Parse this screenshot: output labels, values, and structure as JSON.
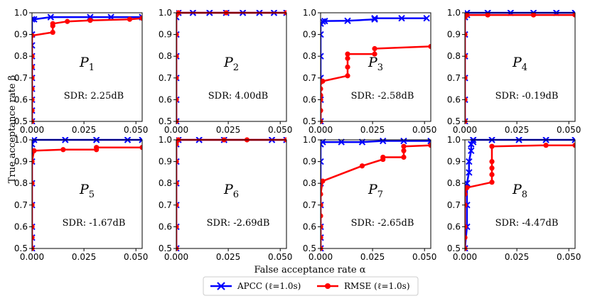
{
  "figure": {
    "xlabel": "False acceptance rate α",
    "ylabel": "True acceptance rate β"
  },
  "legend": [
    {
      "name": "APCC (ℓ=1.0s)",
      "color": "#0000ff",
      "marker": "x"
    },
    {
      "name": "RMSE (ℓ=1.0s)",
      "color": "#ff0000",
      "marker": "o"
    }
  ],
  "chart_data": [
    {
      "type": "line",
      "title": "P1",
      "annotation": "SDR: 2.25dB",
      "xlim": [
        0,
        0.053
      ],
      "ylim": [
        0.5,
        1.0
      ],
      "xticks": [
        "0.000",
        "0.025",
        "0.050"
      ],
      "yticks": [
        "0.5",
        "0.6",
        "0.7",
        "0.8",
        "0.9",
        "1.0"
      ],
      "series": [
        {
          "name": "APCC (ℓ=1.0s)",
          "x": [
            0,
            0,
            0,
            0,
            0,
            0,
            0,
            0,
            0,
            0,
            0.001,
            0.009,
            0.028,
            0.038,
            0.053
          ],
          "y": [
            0.5,
            0.55,
            0.6,
            0.65,
            0.7,
            0.75,
            0.8,
            0.85,
            0.9,
            0.97,
            0.97,
            0.98,
            0.98,
            0.98,
            0.98
          ]
        },
        {
          "name": "RMSE (ℓ=1.0s)",
          "x": [
            0,
            0,
            0,
            0,
            0,
            0,
            0,
            0,
            0.01,
            0.01,
            0.01,
            0.017,
            0.028,
            0.047,
            0.053
          ],
          "y": [
            0.5,
            0.55,
            0.6,
            0.65,
            0.7,
            0.75,
            0.8,
            0.895,
            0.91,
            0.94,
            0.95,
            0.96,
            0.965,
            0.97,
            0.975
          ]
        }
      ]
    },
    {
      "type": "line",
      "title": "P2",
      "annotation": "SDR: 4.00dB",
      "xlim": [
        0,
        0.053
      ],
      "ylim": [
        0.5,
        1.0
      ],
      "xticks": [
        "0.000",
        "0.025",
        "0.050"
      ],
      "yticks": [
        "0.5",
        "0.6",
        "0.7",
        "0.8",
        "0.9",
        "1.0"
      ],
      "series": [
        {
          "name": "APCC (ℓ=1.0s)",
          "x": [
            0,
            0,
            0,
            0,
            0,
            0,
            0.001,
            0.008,
            0.016,
            0.024,
            0.032,
            0.04,
            0.047,
            0.053
          ],
          "y": [
            0.5,
            0.6,
            0.7,
            0.8,
            0.9,
            0.98,
            1.0,
            1.0,
            1.0,
            1.0,
            1.0,
            1.0,
            1.0,
            1.0
          ]
        },
        {
          "name": "RMSE (ℓ=1.0s)",
          "x": [
            0,
            0,
            0,
            0,
            0,
            0,
            0.001,
            0.024,
            0.053
          ],
          "y": [
            0.5,
            0.6,
            0.7,
            0.8,
            0.9,
            0.99,
            1.0,
            1.0,
            1.0
          ]
        }
      ]
    },
    {
      "type": "line",
      "title": "P3",
      "annotation": "SDR: -2.58dB",
      "xlim": [
        0,
        0.053
      ],
      "ylim": [
        0.5,
        1.0
      ],
      "xticks": [
        "0.000",
        "0.025",
        "0.050"
      ],
      "yticks": [
        "0.5",
        "0.6",
        "0.7",
        "0.8",
        "0.9",
        "1.0"
      ],
      "series": [
        {
          "name": "APCC (ℓ=1.0s)",
          "x": [
            0,
            0,
            0,
            0,
            0,
            0,
            0.001,
            0.002,
            0.013,
            0.026,
            0.026,
            0.039,
            0.051
          ],
          "y": [
            0.5,
            0.6,
            0.7,
            0.8,
            0.9,
            0.95,
            0.96,
            0.962,
            0.963,
            0.97,
            0.975,
            0.975,
            0.975
          ]
        },
        {
          "name": "RMSE (ℓ=1.0s)",
          "x": [
            0,
            0,
            0,
            0,
            0,
            0,
            0.001,
            0.013,
            0.013,
            0.013,
            0.013,
            0.026,
            0.026,
            0.053
          ],
          "y": [
            0.5,
            0.55,
            0.6,
            0.62,
            0.65,
            0.68,
            0.685,
            0.71,
            0.75,
            0.79,
            0.81,
            0.81,
            0.835,
            0.845
          ]
        }
      ]
    },
    {
      "type": "line",
      "title": "P4",
      "annotation": "SDR: -0.19dB",
      "xlim": [
        0,
        0.053
      ],
      "ylim": [
        0.5,
        1.0
      ],
      "xticks": [
        "0.000",
        "0.025",
        "0.050"
      ],
      "yticks": [
        "0.5",
        "0.6",
        "0.7",
        "0.8",
        "0.9",
        "1.0"
      ],
      "series": [
        {
          "name": "APCC (ℓ=1.0s)",
          "x": [
            0,
            0,
            0,
            0,
            0,
            0,
            0.001,
            0.001,
            0.011,
            0.022,
            0.033,
            0.044,
            0.053
          ],
          "y": [
            0.5,
            0.6,
            0.7,
            0.8,
            0.9,
            0.98,
            0.99,
            1.0,
            1.0,
            1.0,
            1.0,
            1.0,
            1.0
          ]
        },
        {
          "name": "RMSE (ℓ=1.0s)",
          "x": [
            0,
            0,
            0,
            0,
            0,
            0,
            0.001,
            0.011,
            0.033,
            0.053
          ],
          "y": [
            0.5,
            0.6,
            0.7,
            0.8,
            0.9,
            0.98,
            0.99,
            0.99,
            0.99,
            0.99
          ]
        }
      ]
    },
    {
      "type": "line",
      "title": "P5",
      "annotation": "SDR: -1.67dB",
      "xlim": [
        0,
        0.053
      ],
      "ylim": [
        0.5,
        1.0
      ],
      "xticks": [
        "0.000",
        "0.025",
        "0.050"
      ],
      "yticks": [
        "0.5",
        "0.6",
        "0.7",
        "0.8",
        "0.9",
        "1.0"
      ],
      "series": [
        {
          "name": "APCC (ℓ=1.0s)",
          "x": [
            0,
            0,
            0,
            0,
            0,
            0,
            0,
            0.001,
            0.016,
            0.031,
            0.046,
            0.053
          ],
          "y": [
            0.5,
            0.55,
            0.6,
            0.7,
            0.8,
            0.9,
            0.98,
            1.0,
            1.0,
            1.0,
            1.0,
            1.0
          ]
        },
        {
          "name": "RMSE (ℓ=1.0s)",
          "x": [
            0,
            0,
            0,
            0,
            0,
            0,
            0.001,
            0.015,
            0.031,
            0.031,
            0.053
          ],
          "y": [
            0.5,
            0.55,
            0.6,
            0.7,
            0.8,
            0.9,
            0.95,
            0.955,
            0.955,
            0.965,
            0.965
          ]
        }
      ]
    },
    {
      "type": "line",
      "title": "P6",
      "annotation": "SDR: -2.69dB",
      "xlim": [
        0,
        0.053
      ],
      "ylim": [
        0.5,
        1.0
      ],
      "xticks": [
        "0.000",
        "0.025",
        "0.050"
      ],
      "yticks": [
        "0.5",
        "0.6",
        "0.7",
        "0.8",
        "0.9",
        "1.0"
      ],
      "series": [
        {
          "name": "APCC (ℓ=1.0s)",
          "x": [
            0,
            0,
            0,
            0,
            0,
            0,
            0.001,
            0.011,
            0.023,
            0.046,
            0.053
          ],
          "y": [
            0.5,
            0.6,
            0.7,
            0.8,
            0.9,
            0.98,
            1.0,
            1.0,
            1.0,
            1.0,
            1.0
          ]
        },
        {
          "name": "RMSE (ℓ=1.0s)",
          "x": [
            0,
            0,
            0,
            0,
            0,
            0,
            0.001,
            0.023,
            0.034,
            0.053
          ],
          "y": [
            0.5,
            0.6,
            0.7,
            0.8,
            0.9,
            0.98,
            1.0,
            1.0,
            1.0,
            1.0
          ]
        }
      ]
    },
    {
      "type": "line",
      "title": "P7",
      "annotation": "SDR: -2.65dB",
      "xlim": [
        0,
        0.053
      ],
      "ylim": [
        0.5,
        1.0
      ],
      "xticks": [
        "0.000",
        "0.025",
        "0.050"
      ],
      "yticks": [
        "0.5",
        "0.6",
        "0.7",
        "0.8",
        "0.9",
        "1.0"
      ],
      "series": [
        {
          "name": "APCC (ℓ=1.0s)",
          "x": [
            0,
            0,
            0,
            0,
            0,
            0,
            0,
            0.001,
            0.01,
            0.02,
            0.03,
            0.04,
            0.053
          ],
          "y": [
            0.5,
            0.55,
            0.6,
            0.7,
            0.8,
            0.9,
            0.98,
            0.99,
            0.99,
            0.99,
            0.995,
            0.995,
            0.995
          ]
        },
        {
          "name": "RMSE (ℓ=1.0s)",
          "x": [
            0,
            0,
            0,
            0,
            0,
            0,
            0.001,
            0.02,
            0.03,
            0.03,
            0.04,
            0.04,
            0.04,
            0.053
          ],
          "y": [
            0.5,
            0.55,
            0.6,
            0.65,
            0.7,
            0.75,
            0.81,
            0.88,
            0.91,
            0.92,
            0.92,
            0.95,
            0.97,
            0.975
          ]
        }
      ]
    },
    {
      "type": "line",
      "title": "P8",
      "annotation": "SDR: -4.47dB",
      "xlim": [
        0,
        0.053
      ],
      "ylim": [
        0.5,
        1.0
      ],
      "xticks": [
        "0.000",
        "0.025",
        "0.050"
      ],
      "yticks": [
        "0.5",
        "0.6",
        "0.7",
        "0.8",
        "0.9",
        "1.0"
      ],
      "series": [
        {
          "name": "APCC (ℓ=1.0s)",
          "x": [
            0,
            0.001,
            0.001,
            0.001,
            0.002,
            0.002,
            0.003,
            0.003,
            0.004,
            0.004,
            0.013,
            0.026,
            0.039,
            0.053
          ],
          "y": [
            0.5,
            0.6,
            0.7,
            0.8,
            0.85,
            0.9,
            0.95,
            0.98,
            0.99,
            1.0,
            1.0,
            1.0,
            1.0,
            1.0
          ]
        },
        {
          "name": "RMSE (ℓ=1.0s)",
          "x": [
            0,
            0,
            0,
            0,
            0,
            0.001,
            0.013,
            0.013,
            0.013,
            0.013,
            0.013,
            0.039,
            0.053
          ],
          "y": [
            0.5,
            0.55,
            0.6,
            0.7,
            0.75,
            0.78,
            0.805,
            0.84,
            0.87,
            0.9,
            0.97,
            0.975,
            0.975
          ]
        }
      ]
    }
  ]
}
